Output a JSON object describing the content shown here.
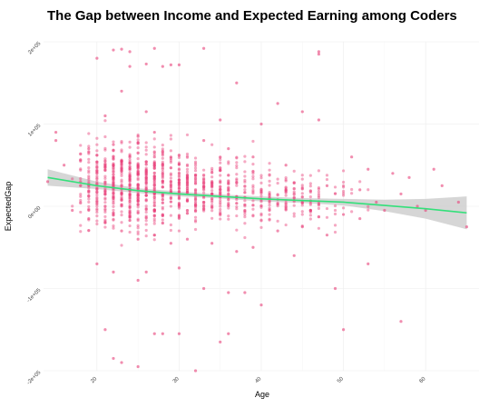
{
  "chart_data": {
    "type": "scatter",
    "title": "The Gap between Income and Expected Earning among Coders",
    "xlabel": "Age",
    "ylabel": "ExpectedGap",
    "xlim": [
      13.5,
      66.5
    ],
    "ylim": [
      -200000,
      200000
    ],
    "x_ticks": [
      20,
      30,
      40,
      50,
      60
    ],
    "x_tick_labels": [
      "20",
      "30",
      "40",
      "50",
      "60"
    ],
    "y_ticks": [
      -200000,
      -100000,
      0,
      100000,
      200000
    ],
    "y_tick_labels": [
      "-2e+05",
      "-1e+05",
      "0e+00",
      "1e+05",
      "2e+05"
    ],
    "grid": true,
    "legend": "none",
    "point_color": "#e8417a",
    "smooth_color": "#33e07a",
    "ribbon_color": "#c8c8c8",
    "series": [
      {
        "values": [
          [
            22,
            190000
          ],
          [
            23,
            191000
          ],
          [
            27,
            192000
          ],
          [
            33,
            192000
          ],
          [
            20,
            180000
          ],
          [
            24,
            188000
          ],
          [
            26,
            173000
          ],
          [
            28,
            170000
          ],
          [
            30,
            172000
          ],
          [
            47,
            185000
          ],
          [
            47,
            188000
          ],
          [
            37,
            150000
          ],
          [
            23,
            140000
          ],
          [
            24,
            170000
          ],
          [
            29,
            172000
          ],
          [
            42,
            125000
          ],
          [
            45,
            115000
          ],
          [
            15,
            90000
          ],
          [
            15,
            80000
          ],
          [
            19,
            70000
          ],
          [
            21,
            110000
          ],
          [
            26,
            115000
          ],
          [
            35,
            105000
          ],
          [
            40,
            100000
          ],
          [
            47,
            105000
          ],
          [
            61,
            45000
          ],
          [
            14,
            30000
          ],
          [
            16,
            50000
          ],
          [
            18,
            55000
          ],
          [
            20,
            62000
          ],
          [
            22,
            75000
          ],
          [
            25,
            85000
          ],
          [
            27,
            90000
          ],
          [
            33,
            80000
          ],
          [
            36,
            70000
          ],
          [
            39,
            60000
          ],
          [
            43,
            50000
          ],
          [
            51,
            60000
          ],
          [
            53,
            45000
          ],
          [
            56,
            40000
          ],
          [
            58,
            35000
          ],
          [
            62,
            25000
          ],
          [
            64,
            5000
          ],
          [
            65,
            -25000
          ],
          [
            59,
            0
          ],
          [
            55,
            -5000
          ],
          [
            52,
            -15000
          ],
          [
            48,
            -35000
          ],
          [
            45,
            -25000
          ],
          [
            42,
            -30000
          ],
          [
            39,
            -50000
          ],
          [
            37,
            -55000
          ],
          [
            34,
            -45000
          ],
          [
            31,
            -40000
          ],
          [
            29,
            -45000
          ],
          [
            27,
            -35000
          ],
          [
            25,
            -40000
          ],
          [
            23,
            -30000
          ],
          [
            21,
            -20000
          ],
          [
            19,
            -15000
          ],
          [
            17,
            -5000
          ],
          [
            20,
            -70000
          ],
          [
            22,
            -80000
          ],
          [
            25,
            -90000
          ],
          [
            30,
            -75000
          ],
          [
            33,
            -100000
          ],
          [
            36,
            -105000
          ],
          [
            38,
            -105000
          ],
          [
            40,
            -120000
          ],
          [
            49,
            -100000
          ],
          [
            21,
            -150000
          ],
          [
            22,
            -185000
          ],
          [
            23,
            -190000
          ],
          [
            25,
            -195000
          ],
          [
            27,
            -155000
          ],
          [
            28,
            -155000
          ],
          [
            30,
            -155000
          ],
          [
            32,
            -200000
          ],
          [
            35,
            -165000
          ],
          [
            36,
            -155000
          ],
          [
            50,
            -150000
          ],
          [
            57,
            -140000
          ],
          [
            26,
            -80000
          ],
          [
            44,
            -60000
          ],
          [
            53,
            -70000
          ],
          [
            18,
            30000
          ],
          [
            24,
            10000
          ],
          [
            28,
            -10000
          ],
          [
            32,
            5000
          ],
          [
            35,
            20000
          ],
          [
            38,
            -5000
          ],
          [
            41,
            15000
          ],
          [
            44,
            10000
          ],
          [
            46,
            -5000
          ],
          [
            48,
            25000
          ],
          [
            50,
            -10000
          ],
          [
            52,
            20000
          ],
          [
            54,
            5000
          ],
          [
            57,
            15000
          ],
          [
            60,
            -5000
          ],
          [
            22,
            35000
          ],
          [
            26,
            30000
          ],
          [
            30,
            25000
          ],
          [
            34,
            15000
          ],
          [
            28,
            40000
          ],
          [
            31,
            35000
          ],
          [
            27,
            60000
          ],
          [
            25,
            50000
          ]
        ]
      }
    ],
    "smooth_line": [
      [
        14,
        35000
      ],
      [
        20,
        25000
      ],
      [
        25,
        19000
      ],
      [
        30,
        15000
      ],
      [
        35,
        12000
      ],
      [
        40,
        9000
      ],
      [
        45,
        7000
      ],
      [
        50,
        5000
      ],
      [
        55,
        1000
      ],
      [
        60,
        -3000
      ],
      [
        65,
        -8000
      ]
    ],
    "smooth_band": [
      [
        14,
        45000,
        25000
      ],
      [
        20,
        30000,
        21000
      ],
      [
        25,
        22000,
        16000
      ],
      [
        30,
        18000,
        12000
      ],
      [
        35,
        14500,
        9500
      ],
      [
        40,
        12000,
        6000
      ],
      [
        45,
        10000,
        4000
      ],
      [
        50,
        9000,
        1000
      ],
      [
        55,
        8000,
        -6000
      ],
      [
        60,
        9000,
        -15000
      ],
      [
        65,
        12000,
        -28000
      ]
    ]
  }
}
